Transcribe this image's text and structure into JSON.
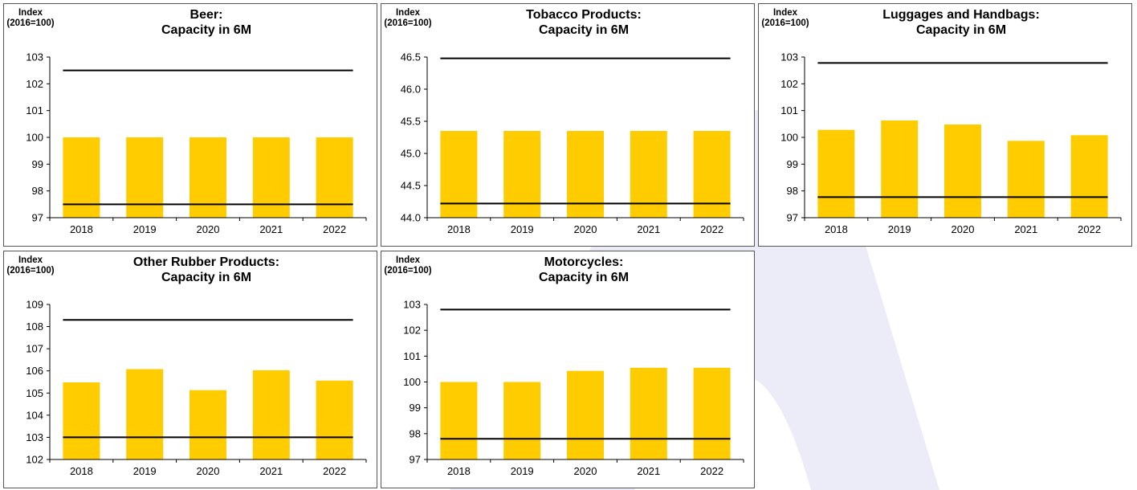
{
  "style": {
    "bar_color": "#ffcc00",
    "line_color": "#000000",
    "watermark_color": "#ececf8"
  },
  "chart_data": [
    {
      "type": "bar",
      "title_line1": "Beer:",
      "title_line2": "Capacity in 6M",
      "unit_line1": "Index",
      "unit_line2": "(2016=100)",
      "categories": [
        "2018",
        "2019",
        "2020",
        "2021",
        "2022"
      ],
      "values": [
        100,
        100,
        100,
        100,
        100
      ],
      "upper_line": 102.5,
      "lower_line": 97.5,
      "ylim": [
        97,
        103
      ],
      "yticks": [
        "97",
        "98",
        "99",
        "100",
        "101",
        "102",
        "103"
      ],
      "ytick_values": [
        97,
        98,
        99,
        100,
        101,
        102,
        103
      ]
    },
    {
      "type": "bar",
      "title_line1": "Tobacco Products:",
      "title_line2": "Capacity in 6M",
      "unit_line1": "Index",
      "unit_line2": "(2016=100)",
      "categories": [
        "2018",
        "2019",
        "2020",
        "2021",
        "2022"
      ],
      "values": [
        45.35,
        45.35,
        45.35,
        45.35,
        45.35
      ],
      "upper_line": 46.48,
      "lower_line": 44.22,
      "ylim": [
        44.0,
        46.5
      ],
      "yticks": [
        "44.0",
        "44.5",
        "45.0",
        "45.5",
        "46.0",
        "46.5"
      ],
      "ytick_values": [
        44.0,
        44.5,
        45.0,
        45.5,
        46.0,
        46.5
      ]
    },
    {
      "type": "bar",
      "title_line1": "Luggages and Handbags:",
      "title_line2": "Capacity in 6M",
      "unit_line1": "Index",
      "unit_line2": "(2016=100)",
      "categories": [
        "2018",
        "2019",
        "2020",
        "2021",
        "2022"
      ],
      "values": [
        100.28,
        100.63,
        100.48,
        99.87,
        100.08
      ],
      "upper_line": 102.78,
      "lower_line": 97.77,
      "ylim": [
        97,
        103
      ],
      "yticks": [
        "97",
        "98",
        "99",
        "100",
        "101",
        "102",
        "103"
      ],
      "ytick_values": [
        97,
        98,
        99,
        100,
        101,
        102,
        103
      ]
    },
    {
      "type": "bar",
      "title_line1": "Other Rubber Products:",
      "title_line2": "Capacity in 6M",
      "unit_line1": "Index",
      "unit_line2": "(2016=100)",
      "categories": [
        "2018",
        "2019",
        "2020",
        "2021",
        "2022"
      ],
      "values": [
        105.48,
        106.08,
        105.13,
        106.03,
        105.56
      ],
      "upper_line": 108.3,
      "lower_line": 103.0,
      "ylim": [
        102,
        109
      ],
      "yticks": [
        "102",
        "103",
        "104",
        "105",
        "106",
        "107",
        "108",
        "109"
      ],
      "ytick_values": [
        102,
        103,
        104,
        105,
        106,
        107,
        108,
        109
      ]
    },
    {
      "type": "bar",
      "title_line1": "Motorcycles:",
      "title_line2": "Capacity in 6M",
      "unit_line1": "Index",
      "unit_line2": "(2016=100)",
      "categories": [
        "2018",
        "2019",
        "2020",
        "2021",
        "2022"
      ],
      "values": [
        100.0,
        100.0,
        100.43,
        100.55,
        100.55
      ],
      "upper_line": 102.8,
      "lower_line": 97.8,
      "ylim": [
        97,
        103
      ],
      "yticks": [
        "97",
        "98",
        "99",
        "100",
        "101",
        "102",
        "103"
      ],
      "ytick_values": [
        97,
        98,
        99,
        100,
        101,
        102,
        103
      ]
    }
  ]
}
